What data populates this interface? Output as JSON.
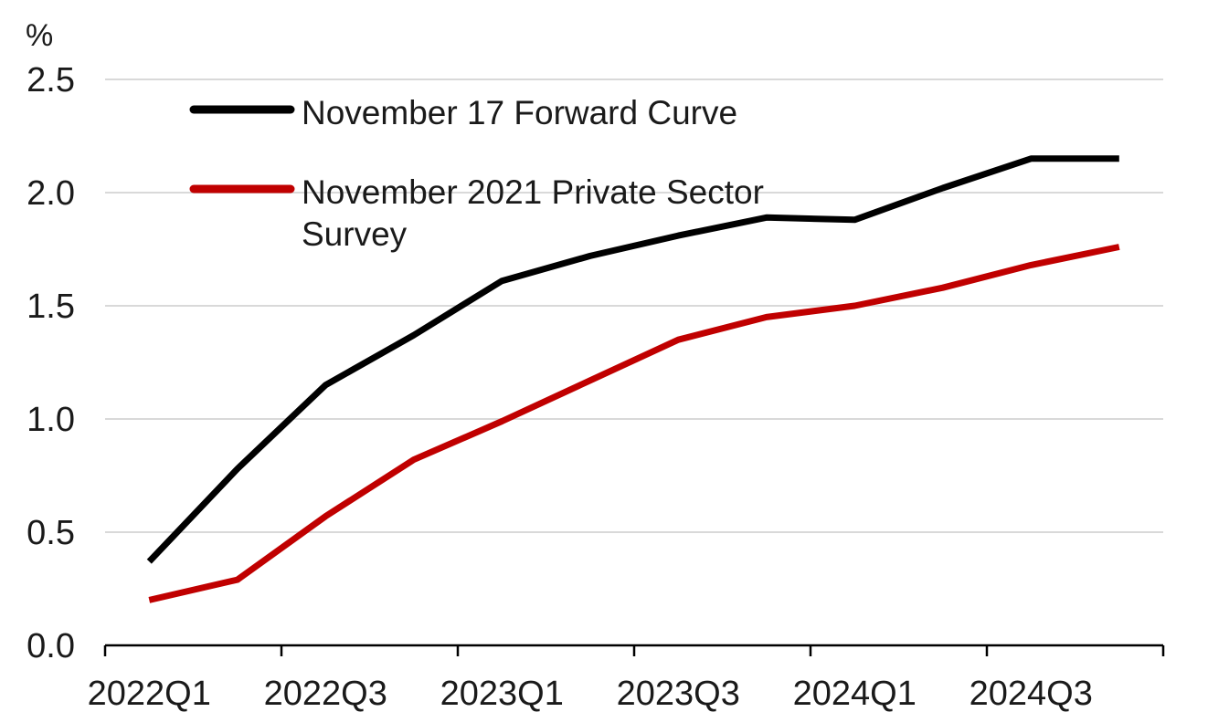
{
  "chart_data": {
    "type": "line",
    "title": "",
    "xlabel": "",
    "ylabel": "%",
    "ylim": [
      0,
      2.5
    ],
    "y_ticks": [
      "0.0",
      "0.5",
      "1.0",
      "1.5",
      "2.0",
      "2.5"
    ],
    "categories": [
      "2022Q1",
      "2022Q2",
      "2022Q3",
      "2022Q4",
      "2023Q1",
      "2023Q2",
      "2023Q3",
      "2023Q4",
      "2024Q1",
      "2024Q2",
      "2024Q3",
      "2024Q4"
    ],
    "x_tick_labels": [
      "2022Q1",
      "2022Q3",
      "2023Q1",
      "2023Q3",
      "2024Q1",
      "2024Q3"
    ],
    "grid": "horizontal",
    "legend_position": "top-left",
    "series": [
      {
        "name": "November 17 Forward Curve",
        "color": "#000000",
        "values": [
          0.37,
          0.78,
          1.15,
          1.37,
          1.61,
          1.72,
          1.81,
          1.89,
          1.88,
          2.02,
          2.15,
          2.15
        ]
      },
      {
        "name": "November 2021 Private Sector Survey",
        "name_lines": [
          "November 2021 Private Sector",
          "Survey"
        ],
        "color": "#c00000",
        "values": [
          0.2,
          0.29,
          0.57,
          0.82,
          0.99,
          1.17,
          1.35,
          1.45,
          1.5,
          1.58,
          1.68,
          1.76
        ]
      }
    ]
  }
}
